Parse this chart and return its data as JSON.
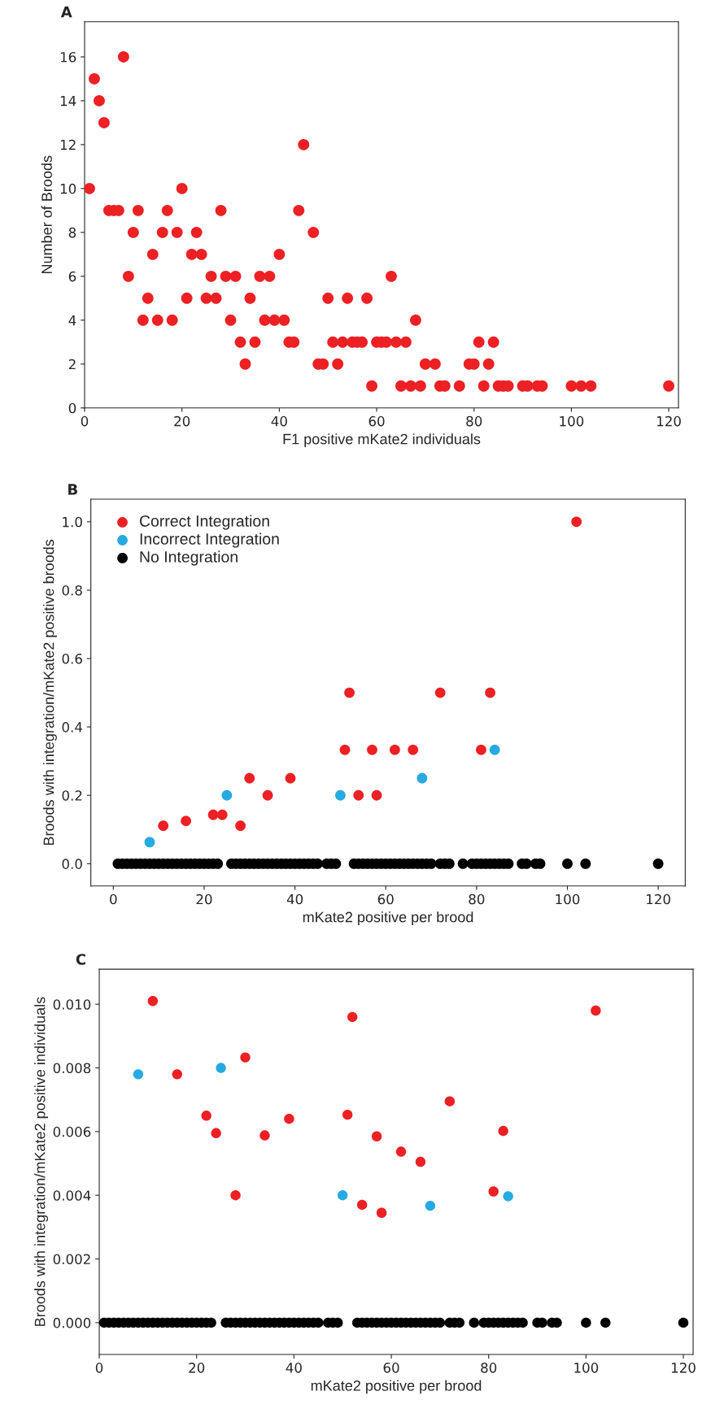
{
  "chart_data": [
    {
      "type": "scatter",
      "title": "A",
      "xlabel": "F1 positive mKate2 individuals",
      "ylabel": "Number of Broods",
      "xlim": [
        0,
        122
      ],
      "ylim": [
        0,
        17.6
      ],
      "xticks": [
        0,
        20,
        40,
        60,
        80,
        100,
        120
      ],
      "yticks": [
        0,
        2,
        4,
        6,
        8,
        10,
        12,
        14,
        16
      ],
      "grid": false,
      "legend": false,
      "marker": "circle",
      "series": [
        {
          "color": "#ed2024",
          "x": [
            1,
            2,
            3,
            4,
            5,
            6,
            7,
            8,
            9,
            10,
            11,
            12,
            13,
            14,
            15,
            16,
            17,
            18,
            19,
            20,
            21,
            22,
            23,
            24,
            25,
            26,
            27,
            28,
            29,
            30,
            31,
            32,
            33,
            34,
            35,
            36,
            37,
            38,
            39,
            40,
            41,
            42,
            43,
            44,
            45,
            47,
            48,
            49,
            50,
            51,
            52,
            53,
            54,
            55,
            56,
            57,
            58,
            59,
            60,
            61,
            62,
            63,
            64,
            65,
            66,
            67,
            68,
            69,
            70,
            72,
            73,
            74,
            77,
            79,
            80,
            81,
            82,
            83,
            84,
            85,
            86,
            87,
            90,
            91,
            93,
            94,
            100,
            102,
            104,
            120
          ],
          "values": [
            10,
            15,
            14,
            13,
            9,
            9,
            9,
            16,
            6,
            8,
            9,
            4,
            5,
            7,
            4,
            8,
            9,
            4,
            8,
            10,
            5,
            7,
            8,
            7,
            5,
            6,
            5,
            9,
            6,
            4,
            6,
            3,
            2,
            5,
            3,
            6,
            4,
            6,
            4,
            7,
            4,
            3,
            3,
            9,
            12,
            8,
            2,
            2,
            5,
            3,
            2,
            3,
            5,
            3,
            3,
            3,
            5,
            1,
            3,
            3,
            3,
            6,
            3,
            1,
            3,
            1,
            4,
            1,
            2,
            2,
            1,
            1,
            1,
            2,
            2,
            3,
            1,
            2,
            3,
            1,
            1,
            1,
            1,
            1,
            1,
            1,
            1,
            1,
            1,
            1
          ]
        }
      ]
    },
    {
      "type": "scatter",
      "title": "B",
      "xlabel": "mKate2 positive per brood",
      "ylabel": "Broods with integration/mKate2 positive broods",
      "xlim": [
        -4.95,
        125.95
      ],
      "ylim": [
        -0.065,
        1.066
      ],
      "xticks": [
        0,
        20,
        40,
        60,
        80,
        100,
        120
      ],
      "yticks": [
        {
          "value": 0,
          "label": "0.0"
        },
        0.2,
        0.4,
        0.6,
        0.8,
        {
          "value": 1,
          "label": "1.0"
        }
      ],
      "grid": false,
      "legend": "top left",
      "marker": "circle",
      "series": [
        {
          "name": "Correct Integration",
          "color": "#ed2024",
          "x": [
            11,
            16,
            22,
            24,
            28,
            30,
            34,
            39,
            51,
            52,
            54,
            57,
            58,
            62,
            66,
            72,
            81,
            83,
            102
          ],
          "values": [
            0.111,
            0.125,
            0.143,
            0.143,
            0.111,
            0.25,
            0.2,
            0.25,
            0.333,
            0.5,
            0.2,
            0.333,
            0.2,
            0.333,
            0.333,
            0.5,
            0.333,
            0.5,
            1.0
          ]
        },
        {
          "name": "Incorrect Integration",
          "color": "#27aae1",
          "x": [
            8,
            25,
            50,
            68,
            84
          ],
          "values": [
            0.063,
            0.2,
            0.2,
            0.25,
            0.333
          ]
        },
        {
          "name": "No Integration",
          "color": "#000000",
          "x": [
            1,
            2,
            3,
            4,
            5,
            6,
            7,
            8,
            9,
            10,
            11,
            12,
            13,
            14,
            15,
            16,
            17,
            18,
            19,
            20,
            21,
            22,
            23,
            26,
            27,
            28,
            29,
            30,
            31,
            32,
            33,
            34,
            35,
            36,
            37,
            38,
            39,
            40,
            41,
            42,
            43,
            44,
            45,
            47,
            48,
            49,
            53,
            54,
            55,
            56,
            57,
            58,
            59,
            60,
            61,
            62,
            63,
            64,
            65,
            66,
            67,
            68,
            69,
            70,
            72,
            73,
            74,
            77,
            79,
            80,
            81,
            82,
            83,
            84,
            85,
            86,
            87,
            90,
            91,
            93,
            94,
            100,
            104,
            120
          ],
          "values": [
            0,
            0,
            0,
            0,
            0,
            0,
            0,
            0,
            0,
            0,
            0,
            0,
            0,
            0,
            0,
            0,
            0,
            0,
            0,
            0,
            0,
            0,
            0,
            0,
            0,
            0,
            0,
            0,
            0,
            0,
            0,
            0,
            0,
            0,
            0,
            0,
            0,
            0,
            0,
            0,
            0,
            0,
            0,
            0,
            0,
            0,
            0,
            0,
            0,
            0,
            0,
            0,
            0,
            0,
            0,
            0,
            0,
            0,
            0,
            0,
            0,
            0,
            0,
            0,
            0,
            0,
            0,
            0,
            0,
            0,
            0,
            0,
            0,
            0,
            0,
            0,
            0,
            0,
            0,
            0,
            0,
            0,
            0,
            0
          ]
        }
      ]
    },
    {
      "type": "scatter",
      "title": "C",
      "xlabel": "mKate2 positive per brood",
      "ylabel": "Broods with integration/mKate2 positive individuals",
      "xlim": [
        0,
        122
      ],
      "ylim": [
        -0.001,
        0.0111
      ],
      "xticks": [
        0,
        20,
        40,
        60,
        80,
        100,
        120
      ],
      "yticks": [
        {
          "value": 0,
          "label": "0.000"
        },
        {
          "value": 0.002,
          "label": "0.002"
        },
        {
          "value": 0.004,
          "label": "0.004"
        },
        {
          "value": 0.006,
          "label": "0.006"
        },
        {
          "value": 0.008,
          "label": "0.008"
        },
        {
          "value": 0.01,
          "label": "0.010"
        }
      ],
      "grid": false,
      "legend": false,
      "marker": "circle",
      "series": [
        {
          "color": "#ed2024",
          "x": [
            11,
            16,
            22,
            24,
            28,
            30,
            34,
            39,
            51,
            52,
            54,
            57,
            58,
            62,
            66,
            72,
            81,
            83,
            102
          ],
          "values": [
            0.0101,
            0.0078,
            0.0065,
            0.00595,
            0.004,
            0.00833,
            0.00588,
            0.0064,
            0.00653,
            0.0096,
            0.0037,
            0.00585,
            0.00345,
            0.00537,
            0.00505,
            0.00695,
            0.00412,
            0.00602,
            0.0098
          ]
        },
        {
          "color": "#27aae1",
          "x": [
            8,
            25,
            50,
            68,
            84
          ],
          "values": [
            0.0078,
            0.008,
            0.004,
            0.00367,
            0.00397
          ]
        },
        {
          "color": "#000000",
          "x": [
            1,
            2,
            3,
            4,
            5,
            6,
            7,
            8,
            9,
            10,
            11,
            12,
            13,
            14,
            15,
            16,
            17,
            18,
            19,
            20,
            21,
            22,
            23,
            26,
            27,
            28,
            29,
            30,
            31,
            32,
            33,
            34,
            35,
            36,
            37,
            38,
            39,
            40,
            41,
            42,
            43,
            44,
            45,
            47,
            48,
            49,
            53,
            54,
            55,
            56,
            57,
            58,
            59,
            60,
            61,
            62,
            63,
            64,
            65,
            66,
            67,
            68,
            69,
            70,
            72,
            73,
            74,
            77,
            79,
            80,
            81,
            82,
            83,
            84,
            85,
            86,
            87,
            90,
            91,
            93,
            94,
            100,
            104,
            120
          ],
          "values": [
            0,
            0,
            0,
            0,
            0,
            0,
            0,
            0,
            0,
            0,
            0,
            0,
            0,
            0,
            0,
            0,
            0,
            0,
            0,
            0,
            0,
            0,
            0,
            0,
            0,
            0,
            0,
            0,
            0,
            0,
            0,
            0,
            0,
            0,
            0,
            0,
            0,
            0,
            0,
            0,
            0,
            0,
            0,
            0,
            0,
            0,
            0,
            0,
            0,
            0,
            0,
            0,
            0,
            0,
            0,
            0,
            0,
            0,
            0,
            0,
            0,
            0,
            0,
            0,
            0,
            0,
            0,
            0,
            0,
            0,
            0,
            0,
            0,
            0,
            0,
            0,
            0,
            0,
            0,
            0,
            0,
            0,
            0,
            0
          ]
        }
      ]
    }
  ]
}
